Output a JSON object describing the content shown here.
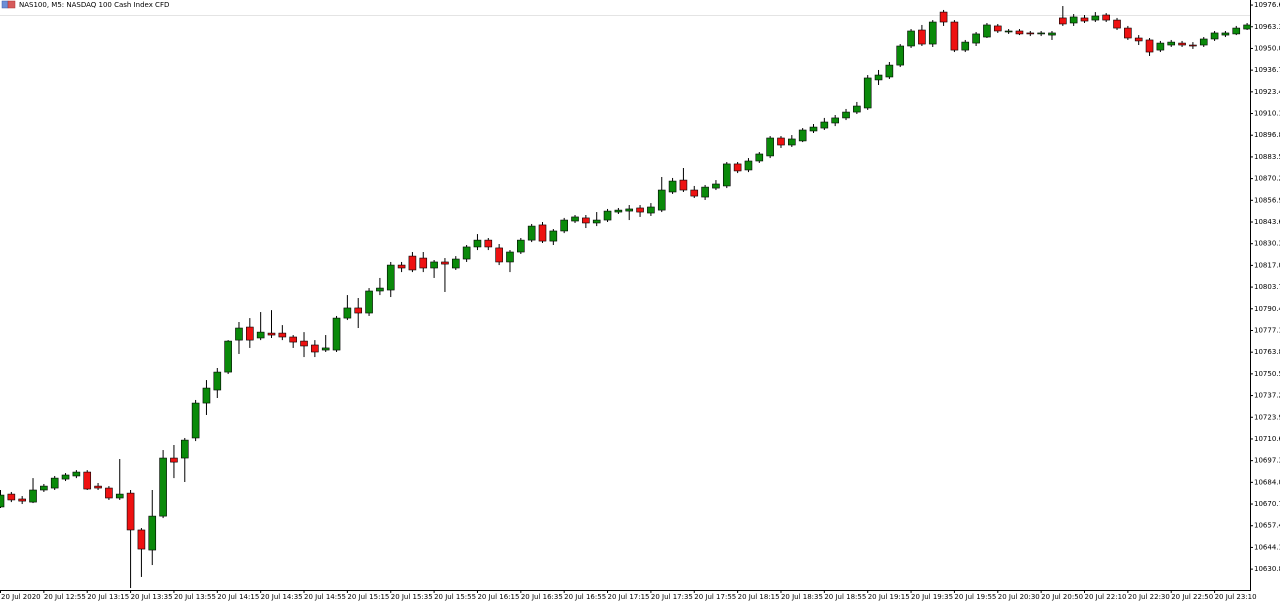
{
  "chart_data": {
    "type": "candlestick",
    "title": "NAS100, M5:  NASDAQ 100 Cash Index CFD",
    "up_color": "#0a8a0a",
    "down_color": "#ee1111",
    "ylim": [
      10618.0,
      10979.7
    ],
    "yticks": [
      10976.6,
      10963.3,
      {
        "value": 10950.0,
        "label": "10950.0"
      },
      10936.7,
      10923.4,
      10910.1,
      10896.8,
      10883.5,
      10870.2,
      10856.9,
      10843.6,
      10830.3,
      {
        "value": 10817.0,
        "label": "10817.0"
      },
      10803.7,
      10790.4,
      10777.1,
      10763.8,
      10750.5,
      10737.2,
      10723.9,
      10710.6,
      10697.3,
      {
        "value": 10684.0,
        "label": "10684.0"
      },
      10670.7,
      10657.4,
      10644.1,
      10630.8
    ],
    "categories": [
      "20 Jul 2020",
      null,
      null,
      null,
      "20 Jul 12:55",
      null,
      null,
      null,
      "20 Jul 13:15",
      null,
      null,
      null,
      "20 Jul 13:35",
      null,
      null,
      null,
      "20 Jul 13:55",
      null,
      null,
      null,
      "20 Jul 14:15",
      null,
      null,
      null,
      "20 Jul 14:35",
      null,
      null,
      null,
      "20 Jul 14:55",
      null,
      null,
      null,
      "20 Jul 15:15",
      null,
      null,
      null,
      "20 Jul 15:35",
      null,
      null,
      null,
      "20 Jul 15:55",
      null,
      null,
      null,
      "20 Jul 16:15",
      null,
      null,
      null,
      "20 Jul 16:35",
      null,
      null,
      null,
      "20 Jul 16:55",
      null,
      null,
      null,
      "20 Jul 17:15",
      null,
      null,
      null,
      "20 Jul 17:35",
      null,
      null,
      null,
      "20 Jul 17:55",
      null,
      null,
      null,
      "20 Jul 18:15",
      null,
      null,
      null,
      "20 Jul 18:35",
      null,
      null,
      null,
      "20 Jul 18:55",
      null,
      null,
      null,
      "20 Jul 19:15",
      null,
      null,
      null,
      "20 Jul 19:35",
      null,
      null,
      null,
      "20 Jul 19:55",
      null,
      null,
      null,
      "20 Jul 20:30",
      null,
      null,
      null,
      "20 Jul 20:50",
      null,
      null,
      null,
      "20 Jul 22:10",
      null,
      null,
      null,
      "20 Jul 22:30",
      null,
      null,
      null,
      "20 Jul 22:50",
      null,
      null,
      null,
      "20 Jul 23:10",
      null,
      null,
      null
    ],
    "open": [
      10668.9,
      10676.8,
      10673.8,
      10671.9,
      10679.3,
      10680.5,
      10686.0,
      10687.9,
      10690.3,
      10681.7,
      10680.5,
      10674.4,
      10677.4,
      10654.8,
      10642.5,
      10663.3,
      10698.9,
      10698.9,
      10711.2,
      10732.6,
      10740.6,
      10751.6,
      10771.2,
      10779.2,
      10772.5,
      10775.5,
      10775.5,
      10773.1,
      10770.6,
      10768.2,
      10765.1,
      10765.1,
      10784.7,
      10790.9,
      10787.8,
      10801.3,
      10801.9,
      10817.2,
      10822.7,
      10821.5,
      10815.4,
      10819.1,
      10815.4,
      10820.9,
      10828.3,
      10832.5,
      10827.7,
      10819.1,
      10825.2,
      10832.5,
      10841.8,
      10831.9,
      10838.1,
      10844.2,
      10846.1,
      10843.0,
      10844.8,
      10849.7,
      10850.3,
      10852.2,
      10849.1,
      10850.9,
      10862.0,
      10869.3,
      10863.2,
      10858.9,
      10864.4,
      10865.7,
      10879.2,
      10875.5,
      10881.0,
      10884.1,
      10895.1,
      10890.8,
      10893.3,
      10899.4,
      10901.2,
      10904.3,
      10907.4,
      10911.0,
      10913.5,
      10930.7,
      10932.5,
      10939.8,
      10951.5,
      10961.3,
      10952.7,
      10972.3,
      10966.2,
      10949.0,
      10953.3,
      10957.0,
      10963.8,
      10960.1,
      10960.7,
      10959.5,
      10958.9,
      10958.2,
      10968.7,
      10965.6,
      10968.7,
      10967.4,
      10970.5,
      10967.4,
      10962.5,
      10956.4,
      10955.2,
      10949.0,
      10952.1,
      10953.3,
      10952.1,
      10952.1,
      10955.8,
      10958.2,
      10958.9,
      10961.9
    ],
    "high": [
      10679.3,
      10678.1,
      10675.6,
      10686.6,
      10683.0,
      10687.9,
      10689.7,
      10691.5,
      10691.5,
      10683.6,
      10681.7,
      10698.3,
      10679.3,
      10656.0,
      10679.3,
      10703.8,
      10706.9,
      10711.2,
      10734.5,
      10746.7,
      10754.1,
      10771.2,
      10782.3,
      10784.7,
      10788.4,
      10789.6,
      10780.4,
      10774.3,
      10776.1,
      10771.2,
      10774.3,
      10786.0,
      10798.8,
      10797.0,
      10803.1,
      10809.3,
      10819.1,
      10819.1,
      10825.2,
      10825.2,
      10820.3,
      10821.5,
      10822.7,
      10829.5,
      10836.2,
      10833.8,
      10830.1,
      10826.4,
      10833.8,
      10842.4,
      10843.6,
      10839.3,
      10846.1,
      10847.9,
      10847.9,
      10849.7,
      10851.6,
      10852.2,
      10854.0,
      10854.0,
      10855.2,
      10871.2,
      10870.6,
      10876.7,
      10865.7,
      10866.3,
      10869.3,
      10880.4,
      10880.4,
      10882.8,
      10886.5,
      10896.3,
      10896.3,
      10896.9,
      10901.2,
      10903.7,
      10907.4,
      10909.2,
      10912.9,
      10917.2,
      10933.7,
      10936.8,
      10941.7,
      10952.7,
      10961.9,
      10964.4,
      10967.4,
      10973.6,
      10967.4,
      10955.2,
      10960.1,
      10965.6,
      10965.0,
      10961.9,
      10961.9,
      10960.7,
      10960.7,
      10960.7,
      10976.0,
      10971.1,
      10970.5,
      10972.3,
      10971.7,
      10968.7,
      10963.8,
      10958.2,
      10956.4,
      10954.6,
      10955.2,
      10954.6,
      10953.9,
      10957.0,
      10960.7,
      10960.7,
      10963.8,
      10965.6
    ],
    "low": [
      10668.3,
      10671.9,
      10670.7,
      10671.3,
      10678.1,
      10679.3,
      10684.8,
      10686.6,
      10679.3,
      10679.3,
      10673.2,
      10673.2,
      10619.2,
      10626.0,
      10633.3,
      10662.1,
      10686.6,
      10684.2,
      10709.3,
      10725.3,
      10735.7,
      10750.4,
      10762.7,
      10766.4,
      10771.2,
      10772.5,
      10771.2,
      10766.4,
      10760.8,
      10760.8,
      10763.9,
      10763.9,
      10783.5,
      10778.6,
      10786.0,
      10798.8,
      10797.6,
      10812.9,
      10812.9,
      10812.9,
      10809.3,
      10800.7,
      10814.2,
      10819.1,
      10826.4,
      10826.4,
      10817.2,
      10812.9,
      10824.0,
      10831.3,
      10830.7,
      10829.5,
      10836.8,
      10843.0,
      10839.9,
      10841.1,
      10843.6,
      10848.5,
      10844.8,
      10846.7,
      10847.3,
      10849.7,
      10860.8,
      10862.0,
      10858.3,
      10857.1,
      10863.2,
      10864.4,
      10873.6,
      10874.2,
      10879.8,
      10882.8,
      10889.0,
      10889.6,
      10892.6,
      10898.2,
      10900.0,
      10902.4,
      10906.1,
      10909.8,
      10912.3,
      10927.6,
      10931.3,
      10938.6,
      10950.3,
      10951.5,
      10950.9,
      10963.8,
      10947.8,
      10947.8,
      10951.5,
      10956.4,
      10959.5,
      10958.9,
      10958.2,
      10957.6,
      10957.6,
      10955.2,
      10963.8,
      10963.8,
      10965.6,
      10966.2,
      10966.2,
      10961.3,
      10955.2,
      10952.1,
      10945.4,
      10947.8,
      10950.9,
      10950.9,
      10949.7,
      10950.9,
      10954.6,
      10957.0,
      10958.2,
      10961.3
    ],
    "close": [
      10676.2,
      10673.2,
      10672.5,
      10679.3,
      10681.7,
      10686.6,
      10688.5,
      10690.3,
      10679.9,
      10680.5,
      10674.4,
      10676.8,
      10654.8,
      10643.1,
      10663.3,
      10698.9,
      10696.4,
      10709.9,
      10732.6,
      10741.8,
      10751.6,
      10770.6,
      10778.6,
      10771.2,
      10776.1,
      10774.3,
      10773.1,
      10770.0,
      10767.6,
      10763.9,
      10766.4,
      10784.7,
      10790.9,
      10787.8,
      10801.3,
      10803.1,
      10817.2,
      10815.4,
      10814.2,
      10815.4,
      10819.1,
      10817.8,
      10820.9,
      10828.3,
      10832.5,
      10828.3,
      10819.1,
      10825.2,
      10832.5,
      10841.1,
      10831.9,
      10838.1,
      10844.8,
      10846.7,
      10843.0,
      10844.8,
      10850.3,
      10850.9,
      10851.6,
      10849.7,
      10852.8,
      10863.2,
      10868.7,
      10863.2,
      10859.5,
      10865.0,
      10866.9,
      10879.2,
      10874.9,
      10881.0,
      10885.3,
      10895.1,
      10890.8,
      10894.5,
      10900.0,
      10901.8,
      10904.9,
      10907.4,
      10911.0,
      10914.7,
      10931.9,
      10933.7,
      10939.8,
      10951.5,
      10960.7,
      10952.7,
      10966.2,
      10966.2,
      10949.0,
      10953.9,
      10958.9,
      10964.4,
      10960.7,
      10960.7,
      10958.9,
      10958.9,
      10959.5,
      10959.5,
      10965.0,
      10969.3,
      10966.8,
      10969.9,
      10967.4,
      10962.5,
      10956.4,
      10954.6,
      10947.8,
      10953.3,
      10953.9,
      10952.1,
      10951.5,
      10955.8,
      10959.5,
      10959.5,
      10962.5,
      10964.4
    ]
  }
}
